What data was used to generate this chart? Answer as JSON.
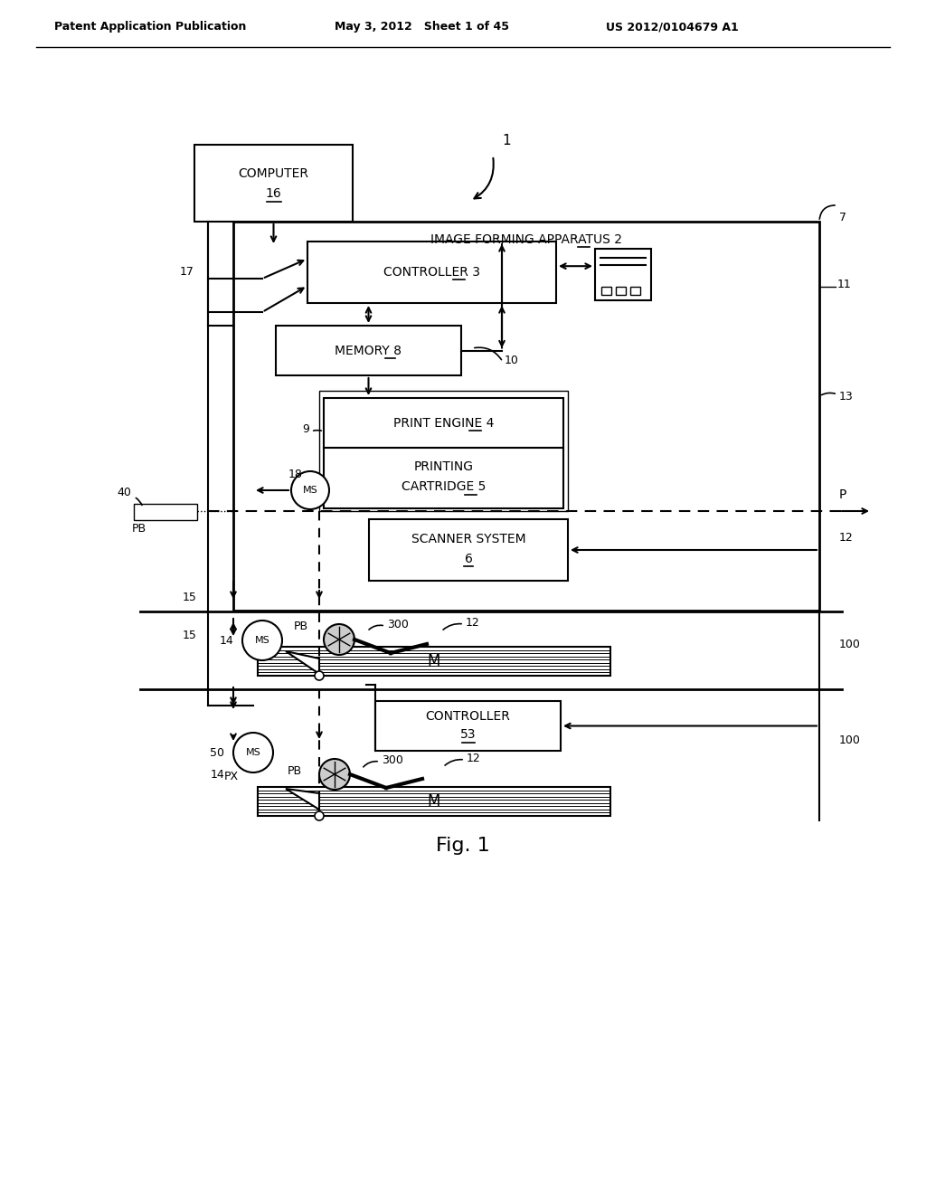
{
  "bg_color": "#ffffff",
  "line_color": "#000000",
  "header_left": "Patent Application Publication",
  "header_mid": "May 3, 2012   Sheet 1 of 45",
  "header_right": "US 2012/0104679 A1",
  "fig_label": "Fig. 1"
}
